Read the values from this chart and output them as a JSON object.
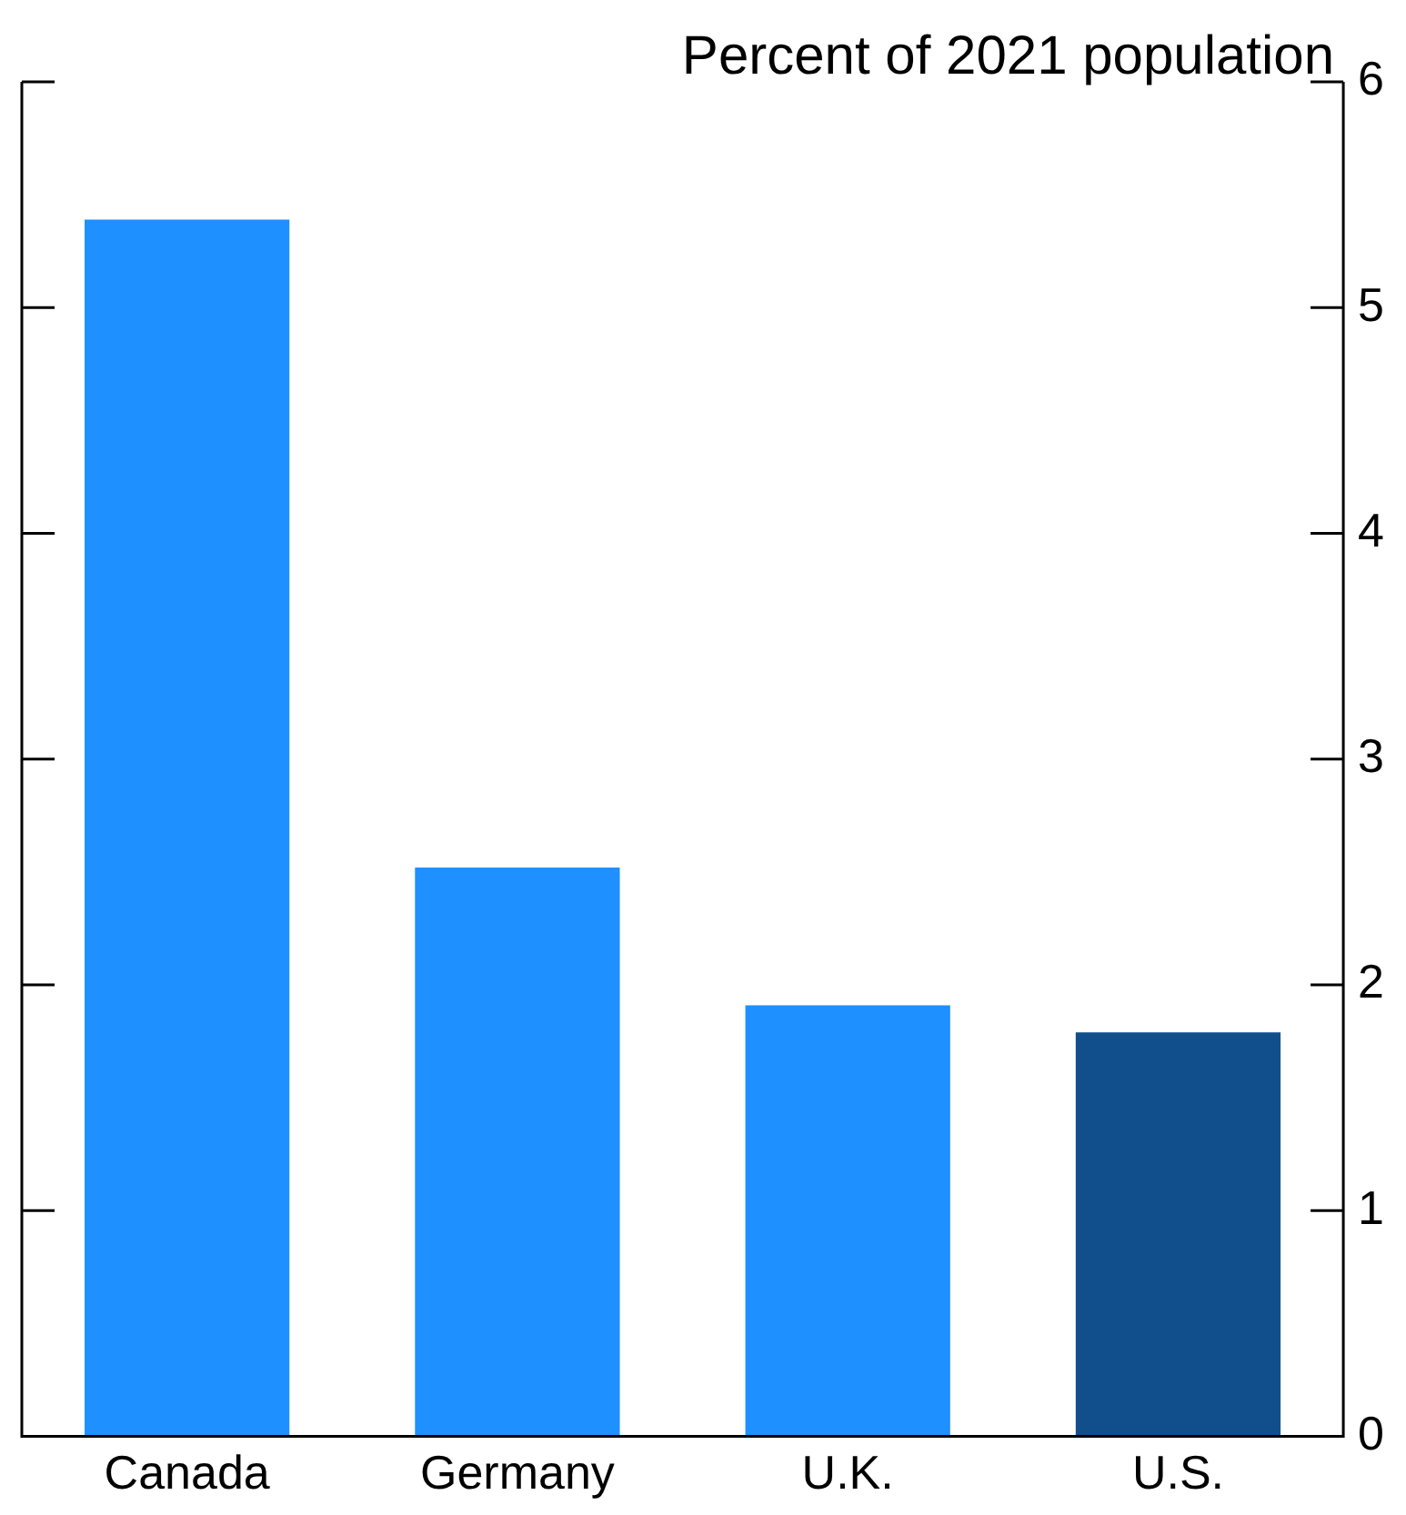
{
  "chart_data": {
    "type": "bar",
    "ylabel": "Percent of 2021 population",
    "categories": [
      "Canada",
      "Germany",
      "U.K.",
      "U.S."
    ],
    "values": [
      5.39,
      2.52,
      1.91,
      1.79
    ],
    "colors": [
      "#1e90ff",
      "#1e90ff",
      "#1e90ff",
      "#114f8c"
    ],
    "ylim": [
      0,
      6
    ],
    "yticks": [
      0,
      1,
      2,
      3,
      4,
      5,
      6
    ],
    "grid": false,
    "legend": false
  }
}
